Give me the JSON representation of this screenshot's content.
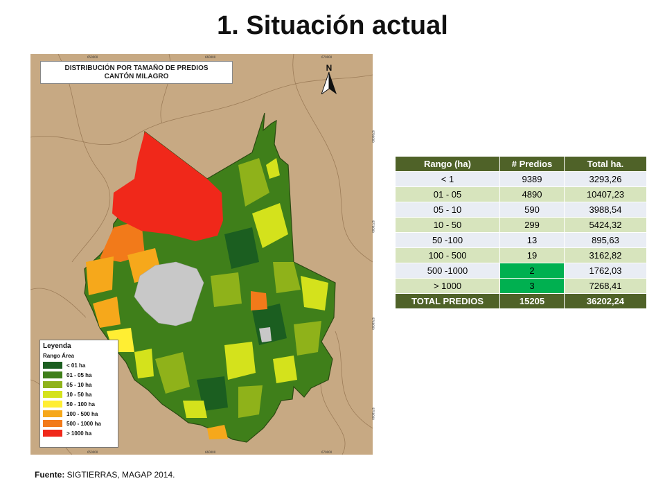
{
  "title": "1. Situación actual",
  "map": {
    "title_line1": "DISTRIBUCIÓN POR TAMAÑO DE PREDIOS",
    "title_line2": "CANTÓN MILAGRO",
    "north_label": "N",
    "icon_north": "north-arrow-icon",
    "coords_top": [
      "650000",
      "660000",
      "670000"
    ],
    "coords_bottom": [
      "650000",
      "660000",
      "670000"
    ],
    "coords_right": [
      "9780000",
      "9770000",
      "9760000",
      "9750000"
    ],
    "legend": {
      "title": "Leyenda",
      "subtitle": "Rango Área",
      "items": [
        {
          "label": "< 01 ha",
          "color": "#1b5e20"
        },
        {
          "label": "01 - 05 ha",
          "color": "#3f7f1a"
        },
        {
          "label": "05 - 10 ha",
          "color": "#8fb21a"
        },
        {
          "label": "10 - 50 ha",
          "color": "#d4e21c"
        },
        {
          "label": "50 - 100 ha",
          "color": "#ffee33"
        },
        {
          "label": "100 - 500 ha",
          "color": "#f6a81b"
        },
        {
          "label": "500 - 1000 ha",
          "color": "#f27a1a"
        },
        {
          "label": "> 1000 ha",
          "color": "#f0281a"
        }
      ]
    }
  },
  "table": {
    "headers": [
      "Rango (ha)",
      "# Predios",
      "Total ha."
    ],
    "rows": [
      [
        "< 1",
        "9389",
        "3293,26"
      ],
      [
        "01 - 05",
        "4890",
        "10407,23"
      ],
      [
        "05 - 10",
        "590",
        "3988,54"
      ],
      [
        "10 - 50",
        "299",
        "5424,32"
      ],
      [
        "50 -100",
        "13",
        "895,63"
      ],
      [
        "100 - 500",
        "19",
        "3162,82"
      ],
      [
        "500 -1000",
        "2",
        "1762,03"
      ],
      [
        "> 1000",
        "3",
        "7268,41"
      ]
    ],
    "total": [
      "TOTAL PREDIOS",
      "15205",
      "36202,24"
    ],
    "highlight_color": "#00b050"
  },
  "source": {
    "label": "Fuente:",
    "text": " SIGTIERRAS, MAGAP 2014."
  }
}
